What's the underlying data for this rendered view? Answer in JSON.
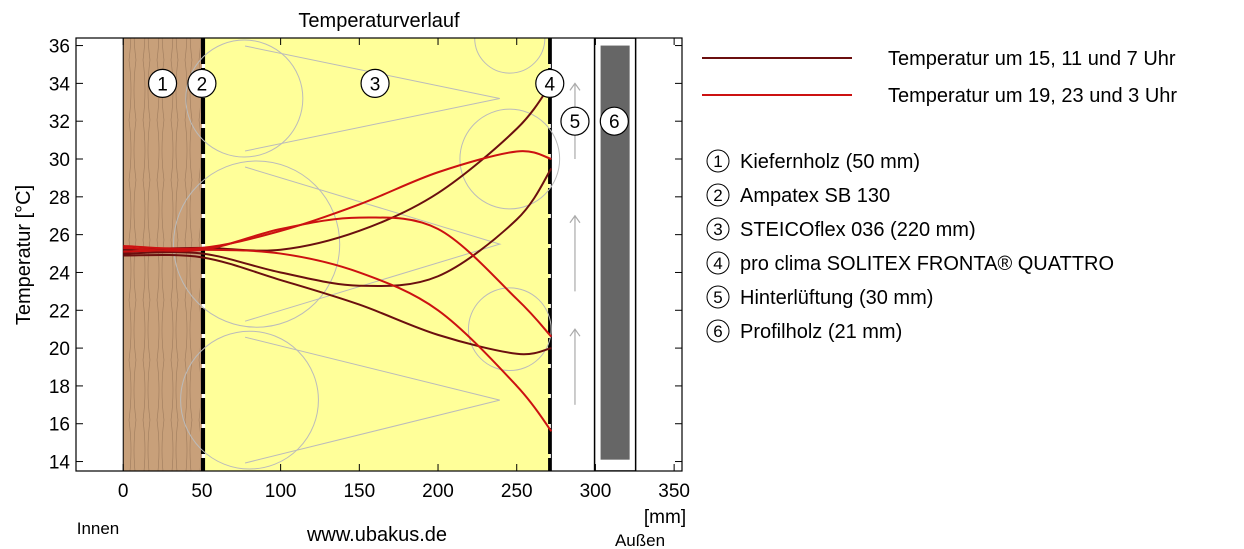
{
  "chart_data": {
    "type": "line",
    "title": "Temperaturverlauf",
    "xlabel": "[mm]",
    "ylabel": "Temperatur [°C]",
    "xlim": [
      -30,
      355
    ],
    "ylim": [
      13.5,
      36.4
    ],
    "xticks": [
      0,
      50,
      100,
      150,
      200,
      250,
      300,
      350
    ],
    "yticks": [
      14,
      16,
      18,
      20,
      22,
      24,
      26,
      28,
      30,
      32,
      34,
      36
    ],
    "grid": false,
    "legend_position": "right",
    "side_labels": {
      "inside": "Innen",
      "outside": "Außen"
    },
    "source": "www.ubakus.de",
    "layers": [
      {
        "number": "1",
        "name": "Kiefernholz (50 mm)",
        "x_start": 0,
        "x_end": 50,
        "color": "#c8a07a"
      },
      {
        "number": "2",
        "name": "Ampatex SB 130",
        "x_start": 50,
        "x_end": 52,
        "color": "#000000"
      },
      {
        "number": "3",
        "name": "STEICOflex 036 (220 mm)",
        "x_start": 52,
        "x_end": 271,
        "color": "#ffff99"
      },
      {
        "number": "4",
        "name": "pro clima SOLITEX FRONTA® QUATTRO",
        "x_start": 271,
        "x_end": 272,
        "color": "#000000"
      },
      {
        "number": "5",
        "name": "Hinterlüftung (30 mm)",
        "x_start": 272,
        "x_end": 302,
        "color": "#ffffff"
      },
      {
        "number": "6",
        "name": "Profilholz (21 mm)",
        "x_start": 302,
        "x_end": 323,
        "color": "#666666"
      }
    ],
    "series": [
      {
        "name": "Temperatur um 15, 11 und 7 Uhr",
        "color": "#6b0f0f",
        "group": "dark",
        "x": [
          0,
          50,
          100,
          150,
          200,
          250,
          272
        ],
        "y": [
          25.2,
          25.3,
          25.2,
          26.2,
          28.2,
          31.6,
          34.0
        ]
      },
      {
        "name": "",
        "color": "#6b0f0f",
        "group": "dark",
        "x": [
          0,
          50,
          100,
          150,
          200,
          250,
          272
        ],
        "y": [
          25.0,
          25.0,
          24.0,
          23.3,
          23.8,
          26.8,
          29.5
        ]
      },
      {
        "name": "",
        "color": "#6b0f0f",
        "group": "dark",
        "x": [
          0,
          50,
          100,
          150,
          200,
          250,
          272
        ],
        "y": [
          24.9,
          24.8,
          23.6,
          22.3,
          20.7,
          19.7,
          20.0
        ]
      },
      {
        "name": "Temperatur um 19, 23 und 3 Uhr",
        "color": "#cc1111",
        "group": "red",
        "x": [
          0,
          50,
          100,
          150,
          200,
          250,
          272
        ],
        "y": [
          25.4,
          25.3,
          26.2,
          27.6,
          29.3,
          30.4,
          30.0
        ]
      },
      {
        "name": "",
        "color": "#cc1111",
        "group": "red",
        "x": [
          0,
          50,
          100,
          150,
          200,
          250,
          272
        ],
        "y": [
          25.3,
          25.2,
          26.3,
          26.9,
          26.3,
          22.6,
          20.6
        ]
      },
      {
        "name": "",
        "color": "#cc1111",
        "group": "red",
        "x": [
          0,
          50,
          100,
          150,
          200,
          250,
          272
        ],
        "y": [
          25.1,
          25.2,
          25.0,
          24.0,
          22.0,
          18.0,
          15.6
        ]
      }
    ],
    "legend": [
      {
        "label": "Temperatur um 15, 11 und 7 Uhr",
        "color": "#6b0f0f"
      },
      {
        "label": "Temperatur um 19, 23 und 3 Uhr",
        "color": "#cc1111"
      }
    ]
  }
}
